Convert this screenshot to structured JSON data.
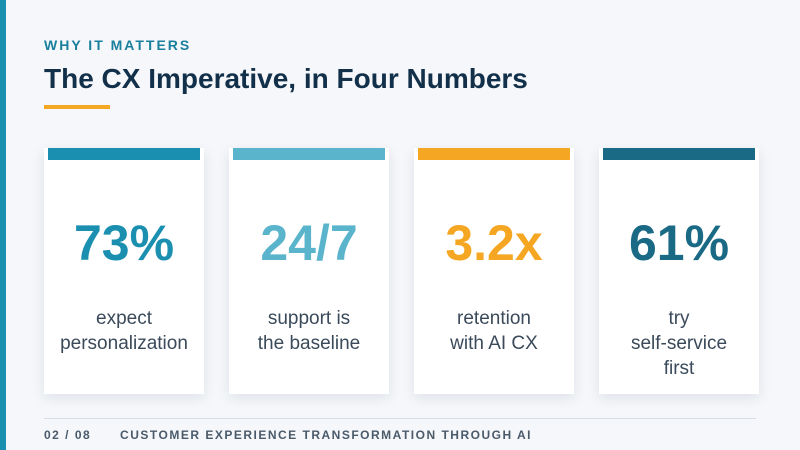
{
  "slide": {
    "eyebrow": "WHY IT MATTERS",
    "title": "The CX Imperative, in Four Numbers"
  },
  "colors": {
    "accent_blue": "#1a8fb0",
    "light_blue": "#5ab5cc",
    "orange": "#f5a623",
    "dark_teal": "#1a6a85",
    "title_navy": "#12304a"
  },
  "cards": [
    {
      "value": "73%",
      "label_lines": [
        "expect",
        "personalization"
      ],
      "color": "#1a8fb0"
    },
    {
      "value": "24/7",
      "label_lines": [
        "support is",
        "the baseline"
      ],
      "color": "#5ab5cc"
    },
    {
      "value": "3.2x",
      "label_lines": [
        "retention",
        "with AI CX"
      ],
      "color": "#f5a623"
    },
    {
      "value": "61%",
      "label_lines": [
        "try",
        "self-service",
        "first"
      ],
      "color": "#1a6a85"
    }
  ],
  "footer": {
    "page": "02 / 08",
    "deck_title": "CUSTOMER EXPERIENCE TRANSFORMATION THROUGH AI"
  }
}
